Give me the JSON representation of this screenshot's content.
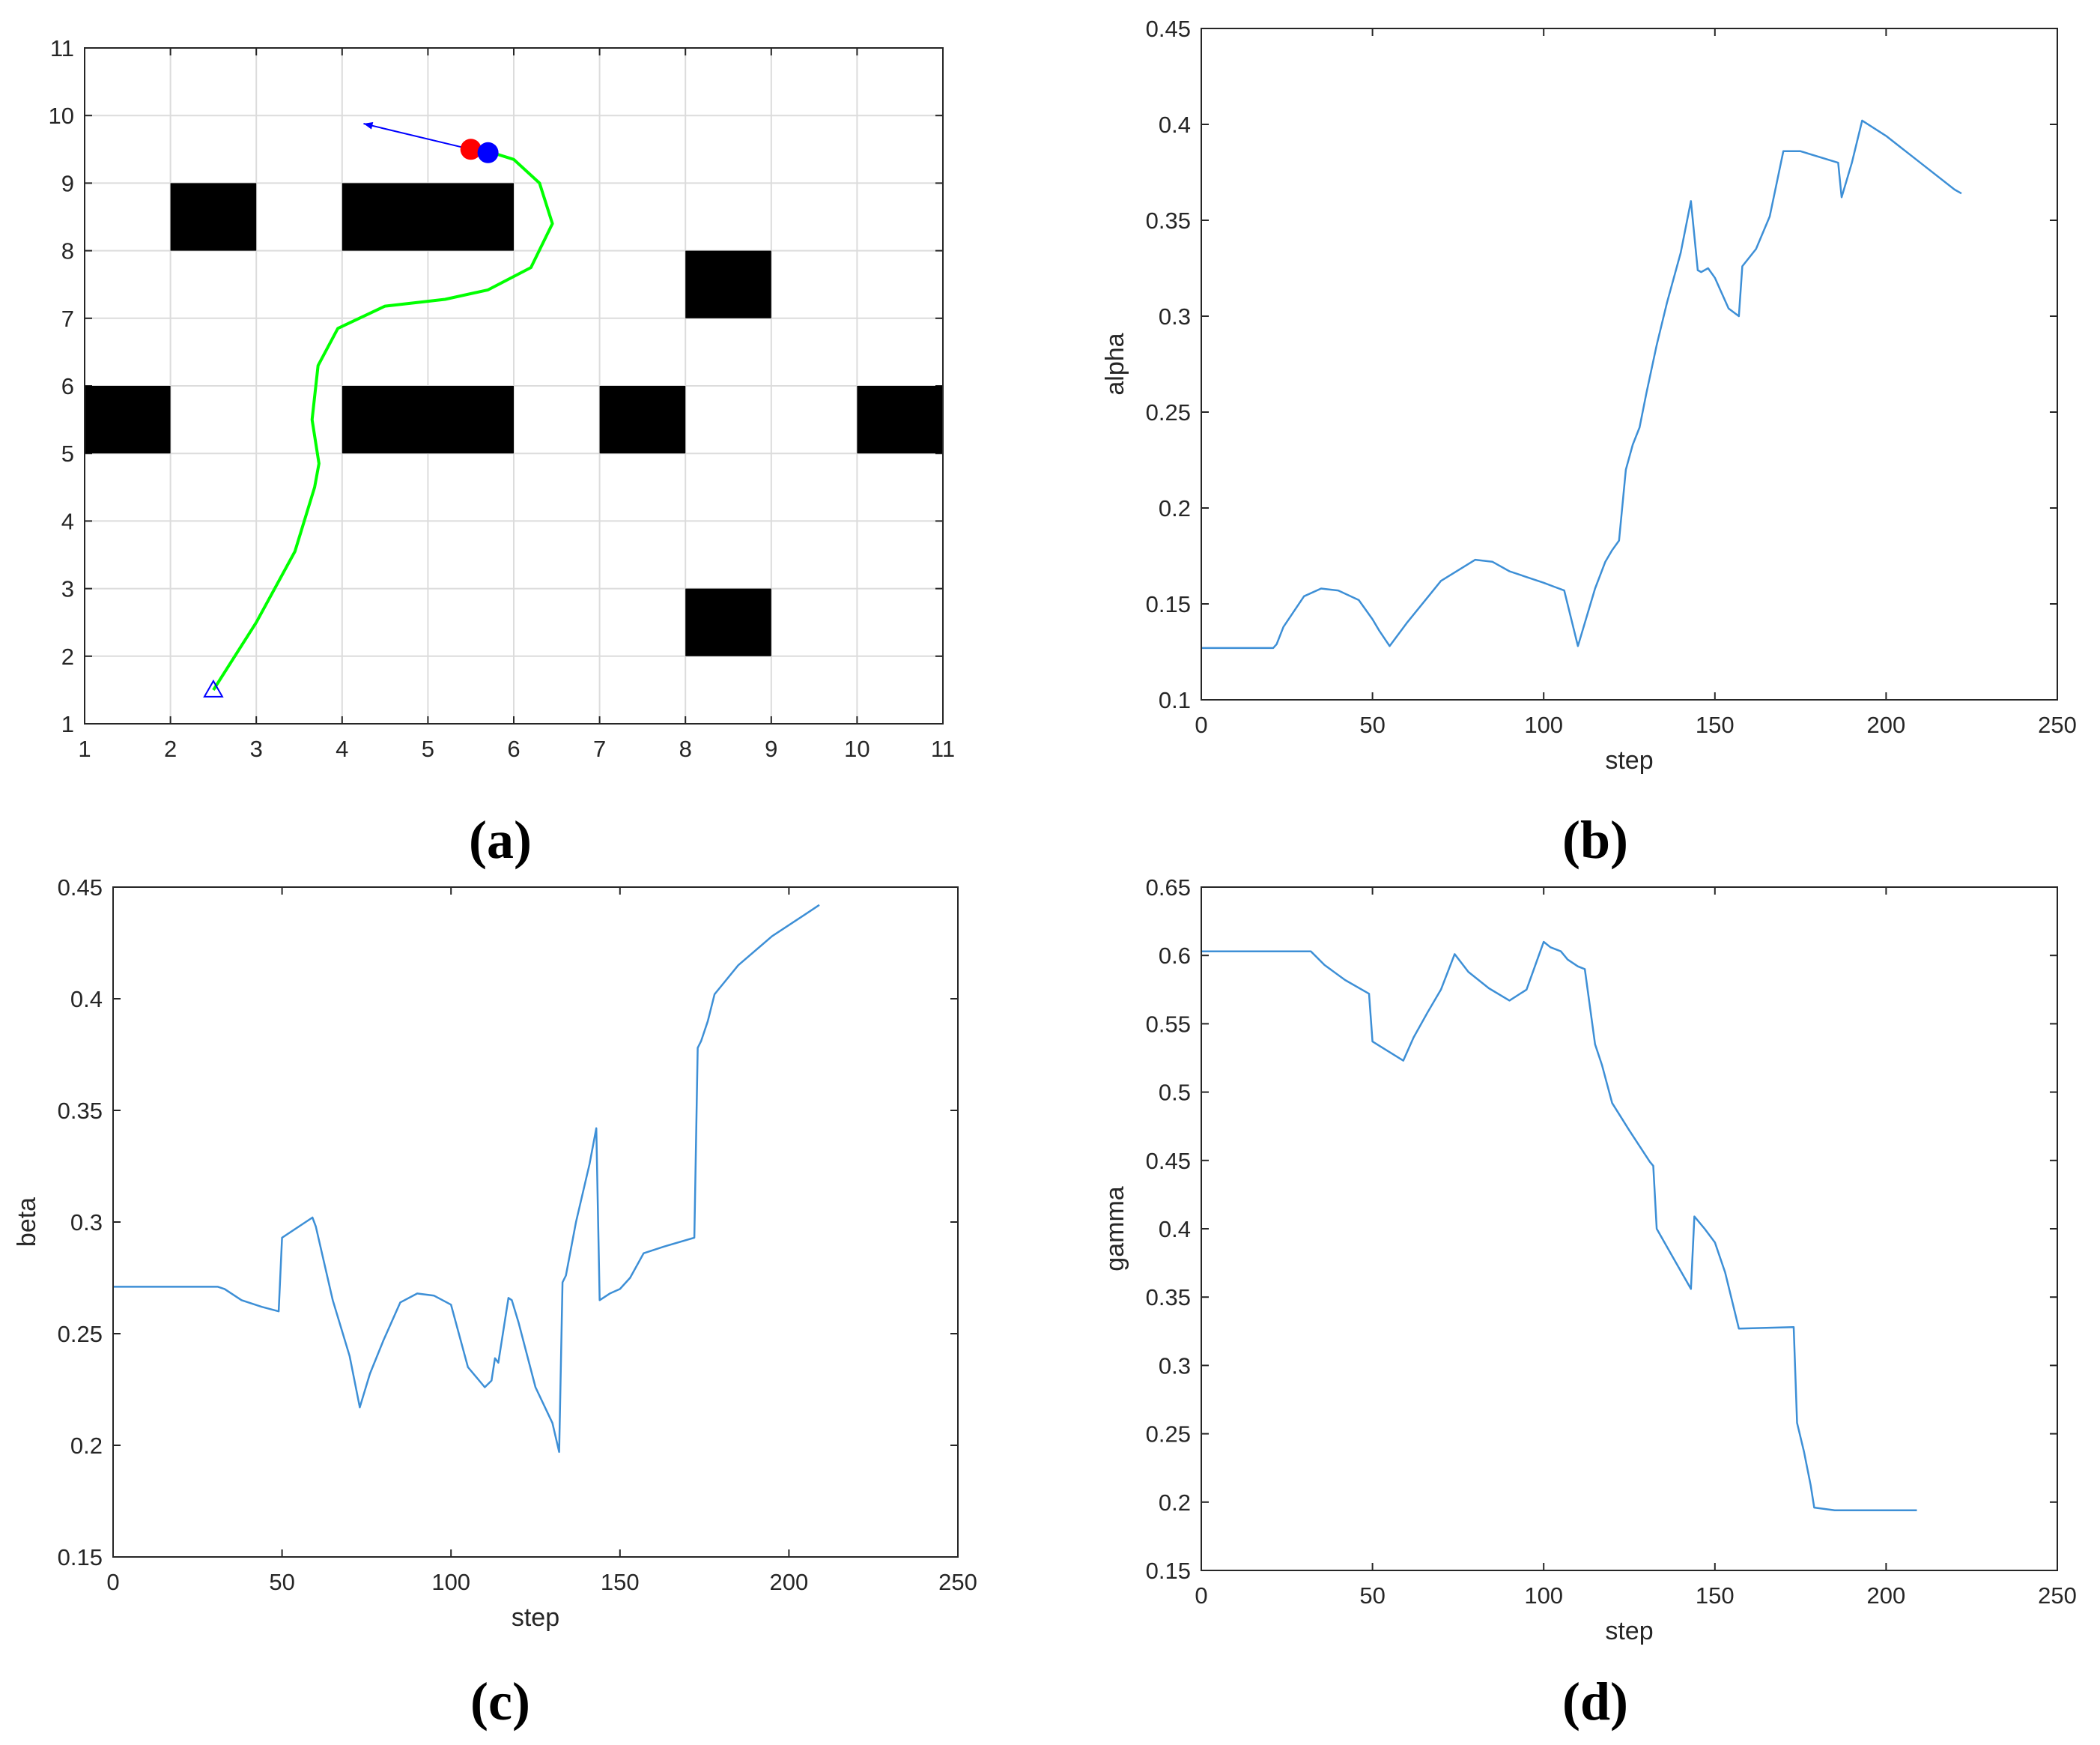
{
  "figure": {
    "captions": [
      "(a)",
      "(b)",
      "(c)",
      "(d)"
    ]
  },
  "colors": {
    "path": "#00ff00",
    "series": "#3d8fd6",
    "arrow": "#0000ff",
    "start_marker": "#0000ff",
    "robot_a": "#ff0000",
    "robot_b": "#0000ff",
    "obstacle": "#000000",
    "grid": "#dcdcdc"
  },
  "chart_data": [
    {
      "id": "a",
      "type": "scatter",
      "title": "",
      "xlabel": "",
      "ylabel": "",
      "xlim": [
        1,
        11
      ],
      "ylim": [
        1,
        11
      ],
      "xticks": [
        1,
        2,
        3,
        4,
        5,
        6,
        7,
        8,
        9,
        10,
        11
      ],
      "yticks": [
        1,
        2,
        3,
        4,
        5,
        6,
        7,
        8,
        9,
        10,
        11
      ],
      "grid": true,
      "obstacles": [
        {
          "x0": 2,
          "x1": 3,
          "y0": 8,
          "y1": 9
        },
        {
          "x0": 4,
          "x1": 6,
          "y0": 8,
          "y1": 9
        },
        {
          "x0": 8,
          "x1": 9,
          "y0": 7,
          "y1": 8
        },
        {
          "x0": 1,
          "x1": 2,
          "y0": 5,
          "y1": 6
        },
        {
          "x0": 4,
          "x1": 6,
          "y0": 5,
          "y1": 6
        },
        {
          "x0": 7,
          "x1": 8,
          "y0": 5,
          "y1": 6
        },
        {
          "x0": 10,
          "x1": 11,
          "y0": 5,
          "y1": 6
        },
        {
          "x0": 8,
          "x1": 9,
          "y0": 2,
          "y1": 3
        }
      ],
      "path": [
        [
          2.5,
          1.5
        ],
        [
          3.0,
          2.5
        ],
        [
          3.45,
          3.55
        ],
        [
          3.68,
          4.5
        ],
        [
          3.73,
          4.85
        ],
        [
          3.65,
          5.5
        ],
        [
          3.72,
          6.3
        ],
        [
          3.95,
          6.85
        ],
        [
          4.5,
          7.18
        ],
        [
          5.2,
          7.28
        ],
        [
          5.7,
          7.42
        ],
        [
          6.2,
          7.75
        ],
        [
          6.45,
          8.4
        ],
        [
          6.3,
          9.0
        ],
        [
          6.0,
          9.35
        ],
        [
          5.7,
          9.47
        ]
      ],
      "start": [
        2.5,
        1.5
      ],
      "robots": [
        [
          5.5,
          9.5
        ],
        [
          5.7,
          9.45
        ]
      ],
      "arrow": {
        "from": [
          5.5,
          9.5
        ],
        "to": [
          4.25,
          9.88
        ]
      }
    },
    {
      "id": "b",
      "type": "line",
      "title": "",
      "xlabel": "step",
      "ylabel": "alpha",
      "xlim": [
        0,
        250
      ],
      "ylim": [
        0.1,
        0.45
      ],
      "xticks": [
        0,
        50,
        100,
        150,
        200,
        250
      ],
      "yticks": [
        0.1,
        0.15,
        0.2,
        0.25,
        0.3,
        0.35,
        0.4,
        0.45
      ],
      "grid": false,
      "x": [
        0,
        21,
        22,
        24,
        30,
        35,
        40,
        46,
        50,
        52,
        55,
        60,
        70,
        80,
        85,
        90,
        100,
        103,
        106,
        110,
        115,
        118,
        120,
        122,
        124,
        126,
        128,
        130,
        133,
        136,
        140,
        143,
        145,
        146,
        148,
        150,
        154,
        157,
        158,
        162,
        166,
        170,
        175,
        186,
        187,
        190,
        193,
        200,
        210,
        220,
        222
      ],
      "y": [
        0.127,
        0.127,
        0.129,
        0.138,
        0.154,
        0.158,
        0.157,
        0.152,
        0.142,
        0.136,
        0.128,
        0.14,
        0.162,
        0.173,
        0.172,
        0.167,
        0.161,
        0.159,
        0.157,
        0.128,
        0.158,
        0.172,
        0.178,
        0.183,
        0.22,
        0.233,
        0.242,
        0.26,
        0.285,
        0.307,
        0.333,
        0.36,
        0.324,
        0.323,
        0.325,
        0.32,
        0.304,
        0.3,
        0.326,
        0.335,
        0.352,
        0.386,
        0.386,
        0.38,
        0.362,
        0.38,
        0.402,
        0.394,
        0.38,
        0.366,
        0.364
      ]
    },
    {
      "id": "c",
      "type": "line",
      "title": "",
      "xlabel": "step",
      "ylabel": "beta",
      "xlim": [
        0,
        250
      ],
      "ylim": [
        0.15,
        0.45
      ],
      "xticks": [
        0,
        50,
        100,
        150,
        200,
        250
      ],
      "yticks": [
        0.15,
        0.2,
        0.25,
        0.3,
        0.35,
        0.4,
        0.45
      ],
      "grid": false,
      "x": [
        0,
        31,
        33,
        38,
        44,
        49,
        50,
        59,
        60,
        65,
        70,
        73,
        76,
        80,
        85,
        90,
        95,
        100,
        105,
        110,
        112,
        113,
        114,
        117,
        118,
        120,
        125,
        130,
        132,
        133,
        134,
        137,
        141,
        143,
        144,
        147,
        150,
        153,
        157,
        163,
        172,
        173,
        174,
        176,
        178,
        185,
        195,
        205,
        209
      ],
      "y": [
        0.271,
        0.271,
        0.27,
        0.265,
        0.262,
        0.26,
        0.293,
        0.302,
        0.298,
        0.265,
        0.24,
        0.217,
        0.232,
        0.247,
        0.264,
        0.268,
        0.267,
        0.263,
        0.235,
        0.226,
        0.229,
        0.239,
        0.237,
        0.266,
        0.265,
        0.255,
        0.226,
        0.21,
        0.197,
        0.273,
        0.276,
        0.3,
        0.326,
        0.342,
        0.265,
        0.268,
        0.27,
        0.275,
        0.286,
        0.289,
        0.293,
        0.378,
        0.381,
        0.39,
        0.402,
        0.415,
        0.428,
        0.438,
        0.442
      ]
    },
    {
      "id": "d",
      "type": "line",
      "title": "",
      "xlabel": "step",
      "ylabel": "gamma",
      "xlim": [
        0,
        250
      ],
      "ylim": [
        0.15,
        0.65
      ],
      "xticks": [
        0,
        50,
        100,
        150,
        200,
        250
      ],
      "yticks": [
        0.15,
        0.2,
        0.25,
        0.3,
        0.35,
        0.4,
        0.45,
        0.5,
        0.55,
        0.6,
        0.65
      ],
      "grid": false,
      "x": [
        0,
        32,
        36,
        42,
        49,
        50,
        59,
        62,
        66,
        70,
        74,
        78,
        84,
        90,
        95,
        100,
        102,
        105,
        107,
        110,
        112,
        115,
        117,
        120,
        125,
        131,
        132,
        133,
        138,
        143,
        144,
        147,
        150,
        153,
        157,
        173,
        174,
        176,
        178,
        179,
        185,
        209
      ],
      "y": [
        0.603,
        0.603,
        0.593,
        0.582,
        0.572,
        0.537,
        0.523,
        0.54,
        0.558,
        0.575,
        0.601,
        0.588,
        0.576,
        0.567,
        0.575,
        0.61,
        0.606,
        0.603,
        0.597,
        0.592,
        0.59,
        0.535,
        0.52,
        0.492,
        0.472,
        0.449,
        0.446,
        0.4,
        0.378,
        0.356,
        0.409,
        0.4,
        0.39,
        0.368,
        0.327,
        0.328,
        0.258,
        0.237,
        0.212,
        0.196,
        0.194,
        0.194
      ]
    }
  ]
}
